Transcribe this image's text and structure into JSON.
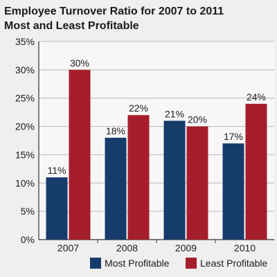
{
  "chart_data": {
    "type": "bar",
    "title": "Employee Turnover Ratio for 2007 to 2011",
    "subtitle": "Most and Least Profitable",
    "categories": [
      "2007",
      "2008",
      "2009",
      "2010"
    ],
    "series": [
      {
        "name": "Most Profitable",
        "values": [
          11,
          18,
          21,
          17
        ],
        "color": "#163c6b"
      },
      {
        "name": "Least Profitable",
        "values": [
          30,
          22,
          20,
          24
        ],
        "color": "#a61e2b"
      }
    ],
    "data_labels": [
      [
        "11%",
        "18%",
        "21%",
        "17%"
      ],
      [
        "30%",
        "22%",
        "20%",
        "24%"
      ]
    ],
    "y_ticks": [
      "0%",
      "5%",
      "10%",
      "15%",
      "20%",
      "25%",
      "30%",
      "35%"
    ],
    "ylim": [
      0,
      35
    ],
    "xlabel": "",
    "ylabel": "",
    "grid": true,
    "legend_position": "bottom-right"
  }
}
